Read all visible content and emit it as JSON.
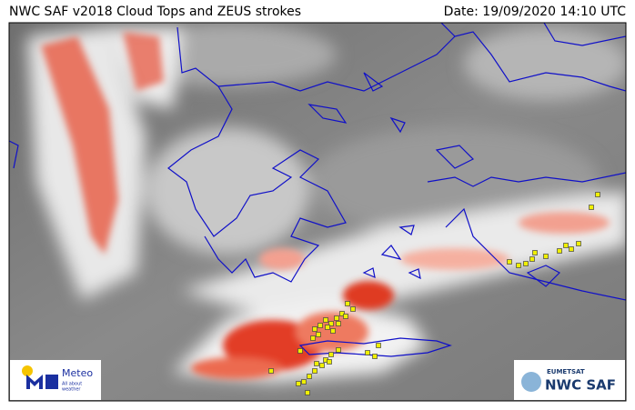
{
  "header": {
    "title": "NWC SAF v2018 Cloud Tops and ZEUS strokes",
    "date": "Date: 19/09/2020 14:10 UTC"
  },
  "logos": {
    "meteo": {
      "name": "Meteo",
      "tagline_1": "All about",
      "tagline_2": "weather"
    },
    "eumetsat": {
      "org": "EUMETSAT",
      "name": "NWC SAF"
    }
  }
}
